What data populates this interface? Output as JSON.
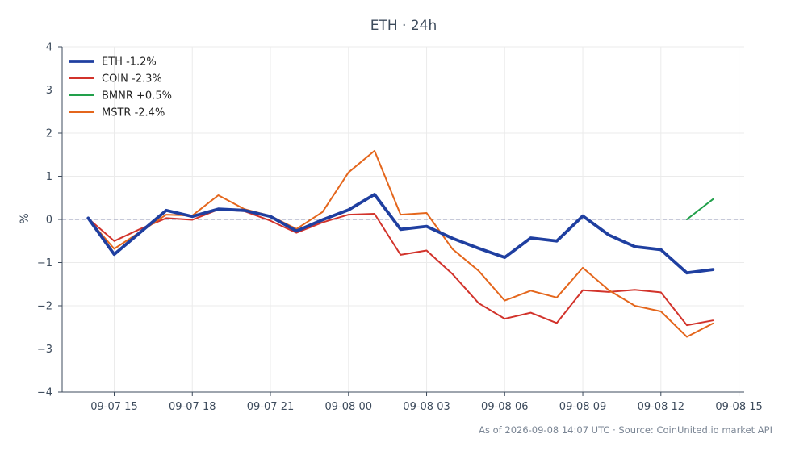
{
  "chart_data": {
    "type": "line",
    "title": "ETH · 24h",
    "xlabel": "",
    "ylabel": "%",
    "footer": "As of 2026-09-08 14:07 UTC · Source: CoinUnited.io market API",
    "ylim": [
      -4,
      4
    ],
    "yticks": [
      4,
      3,
      2,
      1,
      0,
      -1,
      -2,
      -3,
      -4
    ],
    "ytick_labels": [
      "4",
      "3",
      "2",
      "1",
      "0",
      "−1",
      "−2",
      "−3",
      "−4"
    ],
    "x_hour_range": [
      13.0,
      39.2
    ],
    "xticks": [
      {
        "hour": 15,
        "label": "09-07 15"
      },
      {
        "hour": 18,
        "label": "09-07 18"
      },
      {
        "hour": 21,
        "label": "09-07 21"
      },
      {
        "hour": 24,
        "label": "09-08 00"
      },
      {
        "hour": 27,
        "label": "09-08 03"
      },
      {
        "hour": 30,
        "label": "09-08 06"
      },
      {
        "hour": 33,
        "label": "09-08 09"
      },
      {
        "hour": 36,
        "label": "09-08 12"
      },
      {
        "hour": 39,
        "label": "09-08 15"
      }
    ],
    "grid": true,
    "zero_line": true,
    "legend_position": "top-left",
    "series": [
      {
        "name": "ETH -1.2%",
        "color": "#1f3fa0",
        "emphasis": true,
        "x": [
          14,
          15,
          16,
          17,
          18,
          19,
          20,
          21,
          22,
          23,
          24,
          25,
          26,
          27,
          28,
          29,
          30,
          31,
          32,
          33,
          34,
          35,
          36,
          37,
          38
        ],
        "values": [
          0.03,
          -0.81,
          -0.3,
          0.21,
          0.07,
          0.24,
          0.21,
          0.07,
          -0.27,
          -0.01,
          0.22,
          0.58,
          -0.23,
          -0.16,
          -0.44,
          -0.67,
          -0.88,
          -0.43,
          -0.5,
          0.08,
          -0.36,
          -0.63,
          -0.7,
          -1.24,
          -1.16
        ]
      },
      {
        "name": "COIN -2.3%",
        "color": "#d2332b",
        "emphasis": false,
        "x": [
          14,
          15,
          16,
          17,
          18,
          19,
          20,
          21,
          22,
          23,
          24,
          25,
          26,
          27,
          28,
          29,
          30,
          31,
          32,
          33,
          34,
          35,
          36,
          37,
          38
        ],
        "values": [
          0.02,
          -0.5,
          -0.22,
          0.03,
          -0.01,
          0.23,
          0.19,
          -0.03,
          -0.31,
          -0.07,
          0.11,
          0.13,
          -0.82,
          -0.72,
          -1.27,
          -1.94,
          -2.3,
          -2.16,
          -2.4,
          -1.64,
          -1.68,
          -1.63,
          -1.69,
          -2.45,
          -2.34
        ]
      },
      {
        "name": "BMNR +0.5%",
        "color": "#22a04b",
        "emphasis": false,
        "x": [
          37,
          38
        ],
        "values": [
          0.0,
          0.47
        ]
      },
      {
        "name": "MSTR -2.4%",
        "color": "#e4661c",
        "emphasis": false,
        "x": [
          14,
          15,
          16,
          17,
          18,
          19,
          20,
          21,
          22,
          23,
          24,
          25,
          26,
          27,
          28,
          29,
          30,
          31,
          32,
          33,
          34,
          35,
          36,
          37,
          38
        ],
        "values": [
          0.01,
          -0.68,
          -0.29,
          0.11,
          0.09,
          0.56,
          0.24,
          0.08,
          -0.22,
          0.17,
          1.09,
          1.59,
          0.11,
          0.15,
          -0.69,
          -1.19,
          -1.88,
          -1.65,
          -1.81,
          -1.12,
          -1.64,
          -2.0,
          -2.13,
          -2.72,
          -2.41
        ]
      }
    ]
  }
}
